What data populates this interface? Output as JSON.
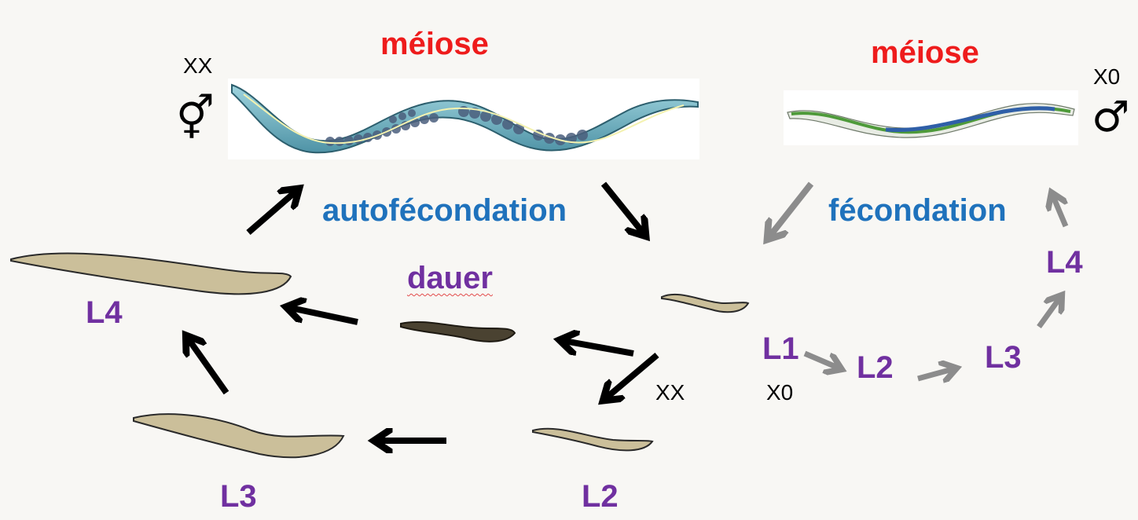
{
  "labels": {
    "meiose_left": "méiose",
    "meiose_right": "méiose",
    "autofecondation": "autofécondation",
    "fecondation": "fécondation",
    "dauer": "dauer",
    "l4_left": "L4",
    "l3_bottom": "L3",
    "l2_bottom": "L2",
    "l1_right": "L1",
    "l2_right": "L2",
    "l3_right": "L3",
    "l4_right": "L4"
  },
  "genotypes": {
    "hermaphrodite": "XX",
    "male": "X0",
    "dauer_branch": "XX",
    "male_branch": "X0"
  },
  "symbols": {
    "hermaphrodite": "⚥",
    "male": "♂"
  },
  "colors": {
    "meiose": "#ee1c1c",
    "fecondation": "#1f72bc",
    "stage": "#7030a0",
    "worm_body": "#cbbf9a",
    "dauer_body": "#4a4231",
    "black_arrow": "#000000",
    "grey_arrow": "#8c8c8c"
  }
}
